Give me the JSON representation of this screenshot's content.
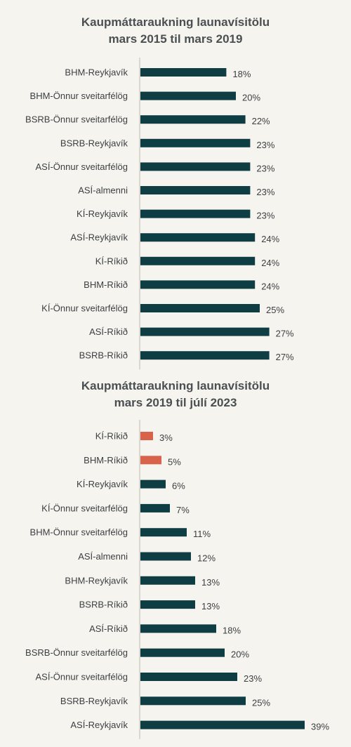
{
  "colors": {
    "primary": "#0f3d44",
    "highlight": "#d9624b",
    "axis": "#c8c4bb",
    "text": "#3b3f42"
  },
  "chart_data": [
    {
      "type": "bar",
      "orientation": "horizontal",
      "title": "Kaupmáttaraukning launavísitölu",
      "subtitle": "mars 2015 til mars 2019",
      "categories": [
        "BHM-Reykjavík",
        "BHM-Önnur sveitarfélög",
        "BSRB-Önnur sveitarfélög",
        "BSRB-Reykjavík",
        "ASÍ-Önnur sveitarfélög",
        "ASÍ-almenni",
        "KÍ-Reykjavík",
        "ASÍ-Reykjavík",
        "KÍ-Ríkið",
        "BHM-Ríkið",
        "KÍ-Önnur sveitarfélög",
        "ASÍ-Ríkið",
        "BSRB-Ríkið"
      ],
      "values": [
        18,
        20,
        22,
        23,
        23,
        23,
        23,
        24,
        24,
        24,
        25,
        27,
        27
      ],
      "value_labels": [
        "18%",
        "20%",
        "22%",
        "23%",
        "23%",
        "23%",
        "23%",
        "24%",
        "24%",
        "24%",
        "25%",
        "27%",
        "27%"
      ],
      "highlight_indices": [],
      "unit": "%",
      "xlim": [
        0,
        39
      ]
    },
    {
      "type": "bar",
      "orientation": "horizontal",
      "title": "Kaupmáttaraukning launavísitölu",
      "subtitle": "mars 2019 til júlí 2023",
      "categories": [
        "KÍ-Ríkið",
        "BHM-Ríkið",
        "KÍ-Reykjavík",
        "KÍ-Önnur sveitarfélög",
        "BHM-Önnur sveitarfélög",
        "ASÍ-almenni",
        "BHM-Reykjavík",
        "BSRB-Ríkið",
        "ASÍ-Ríkið",
        "BSRB-Önnur sveitarfélög",
        "ASÍ-Önnur sveitarfélög",
        "BSRB-Reykjavík",
        "ASÍ-Reykjavík"
      ],
      "values": [
        3,
        5,
        6,
        7,
        11,
        12,
        13,
        13,
        18,
        20,
        23,
        25,
        39
      ],
      "value_labels": [
        "3%",
        "5%",
        "6%",
        "7%",
        "11%",
        "12%",
        "13%",
        "13%",
        "18%",
        "20%",
        "23%",
        "25%",
        "39%"
      ],
      "highlight_indices": [
        0,
        1
      ],
      "unit": "%",
      "xlim": [
        0,
        39
      ]
    }
  ]
}
